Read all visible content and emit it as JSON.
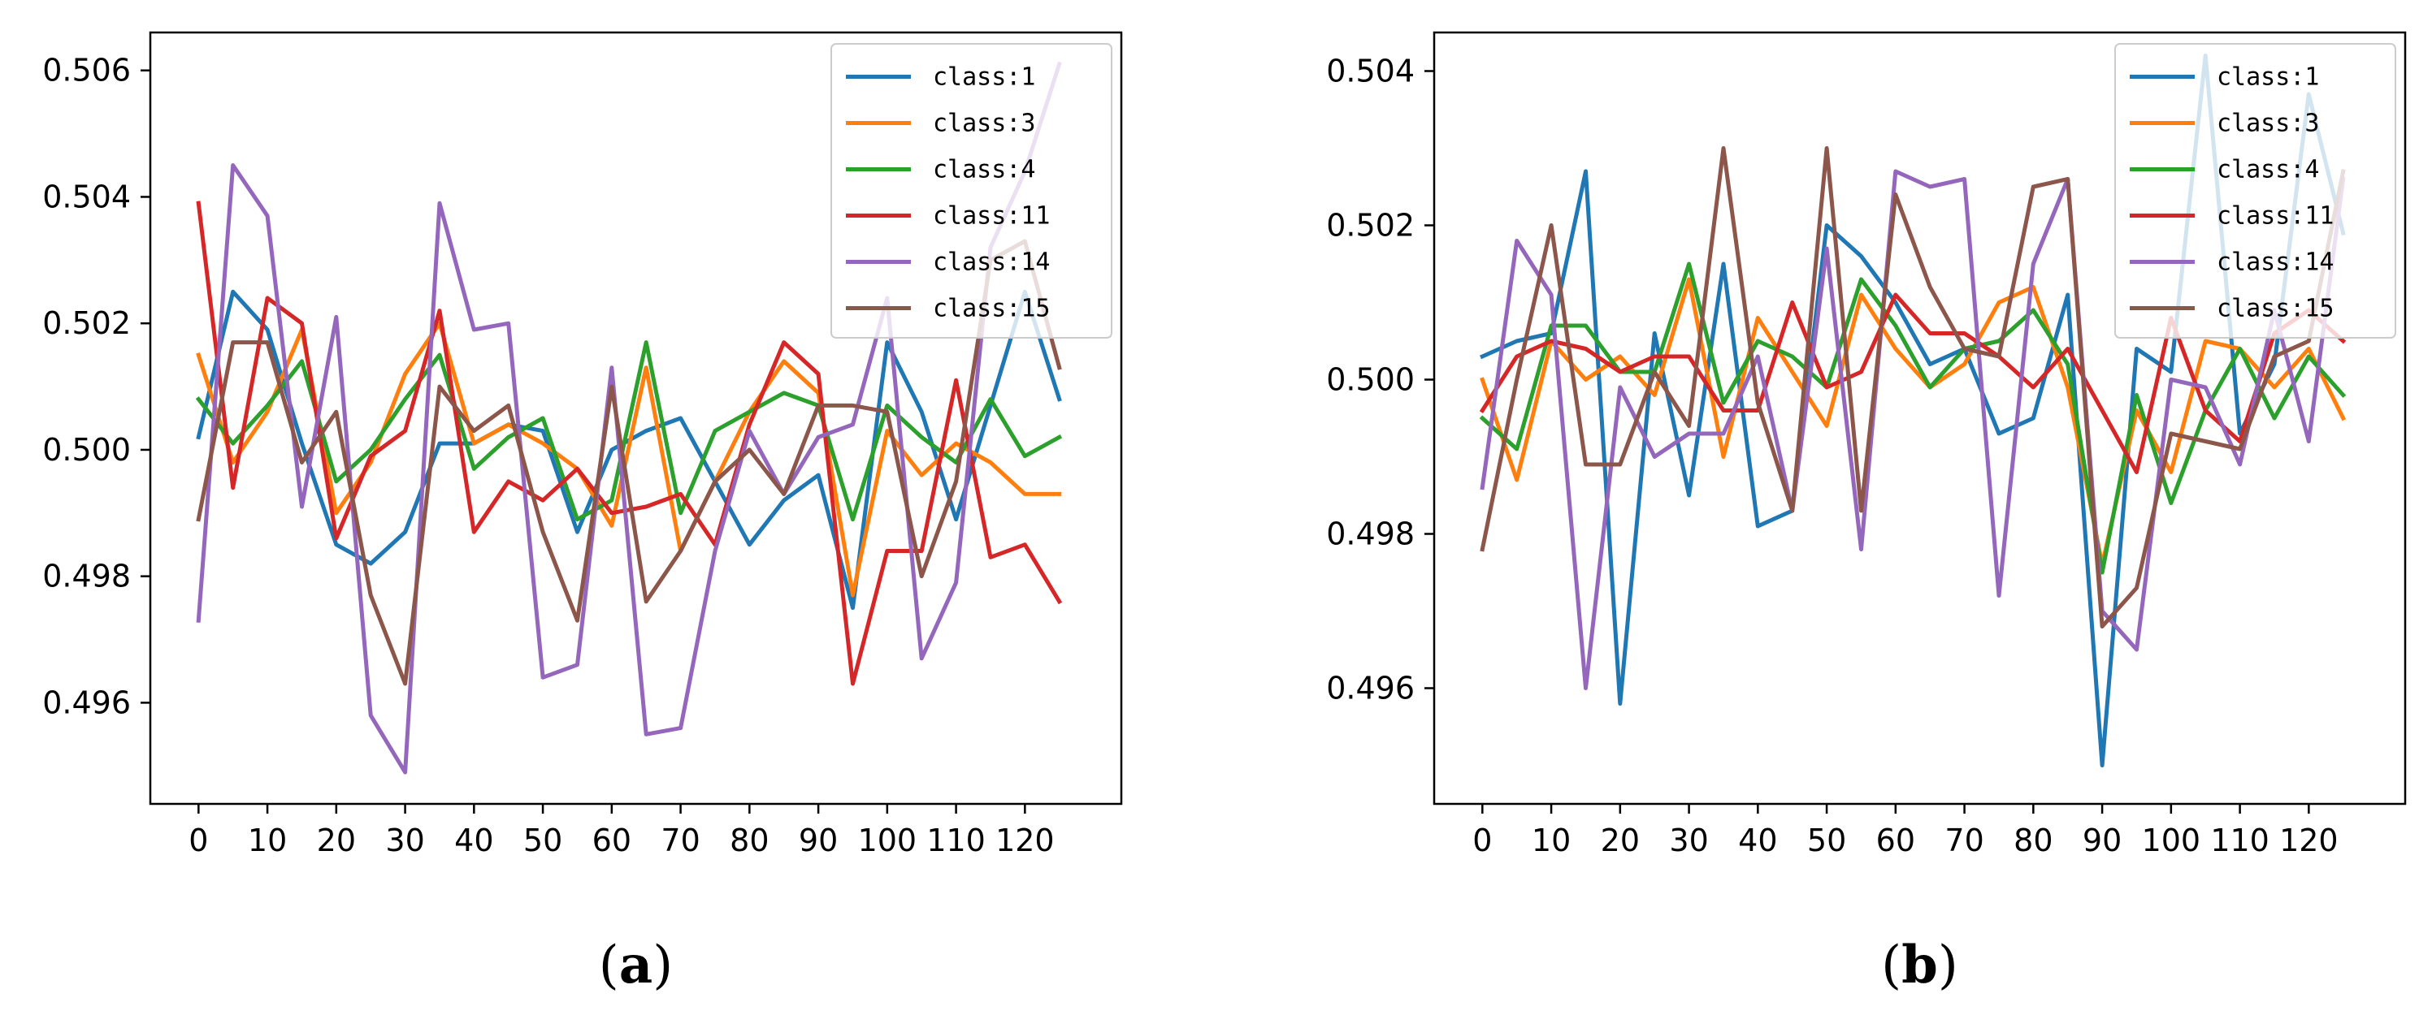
{
  "chart_data": [
    {
      "type": "line",
      "panel_label": "a",
      "x": [
        0,
        5,
        10,
        15,
        20,
        25,
        30,
        35,
        40,
        45,
        50,
        55,
        60,
        65,
        70,
        75,
        80,
        85,
        90,
        95,
        100,
        105,
        110,
        115,
        120,
        125
      ],
      "x_ticks": [
        0,
        10,
        20,
        30,
        40,
        50,
        60,
        70,
        80,
        90,
        100,
        110,
        120
      ],
      "y_ticks": [
        0.496,
        0.498,
        0.5,
        0.502,
        0.504,
        0.506
      ],
      "y_tick_labels": [
        "0.496",
        "0.498",
        "0.500",
        "0.502",
        "0.504",
        "0.506"
      ],
      "xlim": [
        -7,
        134
      ],
      "ylim": [
        0.4944,
        0.5066
      ],
      "grid": false,
      "legend_position": "top-right",
      "series": [
        {
          "name": "class:1",
          "color": "#1f77b4",
          "values": [
            0.5002,
            0.5025,
            0.5019,
            0.5001,
            0.4985,
            0.4982,
            0.4987,
            0.5001,
            0.5001,
            0.5004,
            0.5003,
            0.4987,
            0.5,
            0.5003,
            0.5005,
            0.4995,
            0.4985,
            0.4992,
            0.4996,
            0.4975,
            0.5017,
            0.5006,
            0.4989,
            0.5007,
            0.5025,
            0.5008
          ]
        },
        {
          "name": "class:3",
          "color": "#ff7f0e",
          "values": [
            0.5015,
            0.4998,
            0.5006,
            0.5019,
            0.499,
            0.4998,
            0.5012,
            0.502,
            0.5001,
            0.5004,
            0.5001,
            0.4997,
            0.4988,
            0.5013,
            0.4984,
            0.4995,
            0.5006,
            0.5014,
            0.5009,
            0.4977,
            0.5003,
            0.4996,
            0.5001,
            0.4998,
            0.4993,
            0.4993
          ]
        },
        {
          "name": "class:4",
          "color": "#2ca02c",
          "values": [
            0.5008,
            0.5001,
            0.5007,
            0.5014,
            0.4995,
            0.5,
            0.5008,
            0.5015,
            0.4997,
            0.5002,
            0.5005,
            0.4989,
            0.4992,
            0.5017,
            0.499,
            0.5003,
            0.5006,
            0.5009,
            0.5007,
            0.4989,
            0.5007,
            0.5002,
            0.4998,
            0.5008,
            0.4999,
            0.5002
          ]
        },
        {
          "name": "class:11",
          "color": "#d62728",
          "values": [
            0.5039,
            0.4994,
            0.5024,
            0.502,
            0.4986,
            0.4999,
            0.5003,
            0.5022,
            0.4987,
            0.4995,
            0.4992,
            0.4997,
            0.499,
            0.4991,
            0.4993,
            0.4985,
            0.5004,
            0.5017,
            0.5012,
            0.4963,
            0.4984,
            0.4984,
            0.5011,
            0.4983,
            0.4985,
            0.4976
          ]
        },
        {
          "name": "class:14",
          "color": "#9467bd",
          "values": [
            0.4973,
            0.5045,
            0.5037,
            0.4991,
            0.5021,
            0.4958,
            0.4949,
            0.5039,
            0.5019,
            0.502,
            0.4964,
            0.4966,
            0.5013,
            0.4955,
            0.4956,
            0.4984,
            0.5003,
            0.4993,
            0.5002,
            0.5004,
            0.5024,
            0.4967,
            0.4979,
            0.5032,
            0.5044,
            0.5061
          ]
        },
        {
          "name": "class:15",
          "color": "#8c564b",
          "values": [
            0.4989,
            0.5017,
            0.5017,
            0.4998,
            0.5006,
            0.4977,
            0.4963,
            0.501,
            0.5003,
            0.5007,
            0.4987,
            0.4973,
            0.501,
            0.4976,
            0.4984,
            0.4995,
            0.5,
            0.4993,
            0.5007,
            0.5007,
            0.5006,
            0.498,
            0.4995,
            0.503,
            0.5033,
            0.5013
          ]
        }
      ]
    },
    {
      "type": "line",
      "panel_label": "b",
      "x": [
        0,
        5,
        10,
        15,
        20,
        25,
        30,
        35,
        40,
        45,
        50,
        55,
        60,
        65,
        70,
        75,
        80,
        85,
        90,
        95,
        100,
        105,
        110,
        115,
        120,
        125
      ],
      "x_ticks": [
        0,
        10,
        20,
        30,
        40,
        50,
        60,
        70,
        80,
        90,
        100,
        110,
        120
      ],
      "y_ticks": [
        0.496,
        0.498,
        0.5,
        0.502,
        0.504
      ],
      "y_tick_labels": [
        "0.496",
        "0.498",
        "0.500",
        "0.502",
        "0.504"
      ],
      "xlim": [
        -7,
        134
      ],
      "ylim": [
        0.4945,
        0.5045
      ],
      "grid": false,
      "legend_position": "top-right",
      "series": [
        {
          "name": "class:1",
          "color": "#1f77b4",
          "values": [
            0.5003,
            0.5005,
            0.5006,
            0.5027,
            0.4958,
            0.5006,
            0.4985,
            0.5015,
            0.4981,
            0.4983,
            0.502,
            0.5016,
            0.501,
            0.5002,
            0.5004,
            0.4993,
            0.4995,
            0.5011,
            0.495,
            0.5004,
            0.5001,
            0.5042,
            0.4993,
            0.5002,
            0.5037,
            0.5019
          ]
        },
        {
          "name": "class:3",
          "color": "#ff7f0e",
          "values": [
            0.5,
            0.4987,
            0.5005,
            0.5,
            0.5003,
            0.4998,
            0.5013,
            0.499,
            0.5008,
            0.5001,
            0.4994,
            0.5011,
            0.5004,
            0.4999,
            0.5002,
            0.501,
            0.5012,
            0.4999,
            0.4976,
            0.4996,
            0.4988,
            0.5005,
            0.5004,
            0.4999,
            0.5004,
            0.4995
          ]
        },
        {
          "name": "class:4",
          "color": "#2ca02c",
          "values": [
            0.4995,
            0.4991,
            0.5007,
            0.5007,
            0.5001,
            0.5001,
            0.5015,
            0.4997,
            0.5005,
            0.5003,
            0.4999,
            0.5013,
            0.5007,
            0.4999,
            0.5004,
            0.5005,
            0.5009,
            0.5002,
            0.4975,
            0.4998,
            0.4984,
            0.4996,
            0.5004,
            0.4995,
            0.5003,
            0.4998
          ]
        },
        {
          "name": "class:11",
          "color": "#d62728",
          "values": [
            0.4996,
            0.5003,
            0.5005,
            0.5004,
            0.5001,
            0.5003,
            0.5003,
            0.4996,
            0.4996,
            0.501,
            0.4999,
            0.5001,
            0.5011,
            0.5006,
            0.5006,
            0.5003,
            0.4999,
            0.5004,
            0.4996,
            0.4988,
            0.5008,
            0.4996,
            0.4992,
            0.5006,
            0.5009,
            0.5005
          ]
        },
        {
          "name": "class:14",
          "color": "#9467bd",
          "values": [
            0.4986,
            0.5018,
            0.5011,
            0.496,
            0.4999,
            0.499,
            0.4993,
            0.4993,
            0.5003,
            0.4983,
            0.5017,
            0.4978,
            0.5027,
            0.5025,
            0.5026,
            0.4972,
            0.5015,
            0.5026,
            0.497,
            0.4965,
            0.5,
            0.4999,
            0.4989,
            0.5009,
            0.4992,
            0.5026
          ]
        },
        {
          "name": "class:15",
          "color": "#8c564b",
          "values": [
            0.4978,
            0.5,
            0.502,
            0.4989,
            0.4989,
            0.5001,
            0.4994,
            0.503,
            0.4997,
            0.4983,
            0.503,
            0.4983,
            0.5024,
            0.5012,
            0.5004,
            0.5003,
            0.5025,
            0.5026,
            0.4968,
            0.4973,
            0.4993,
            0.4992,
            0.4991,
            0.5003,
            0.5005,
            0.5027
          ]
        }
      ]
    }
  ]
}
